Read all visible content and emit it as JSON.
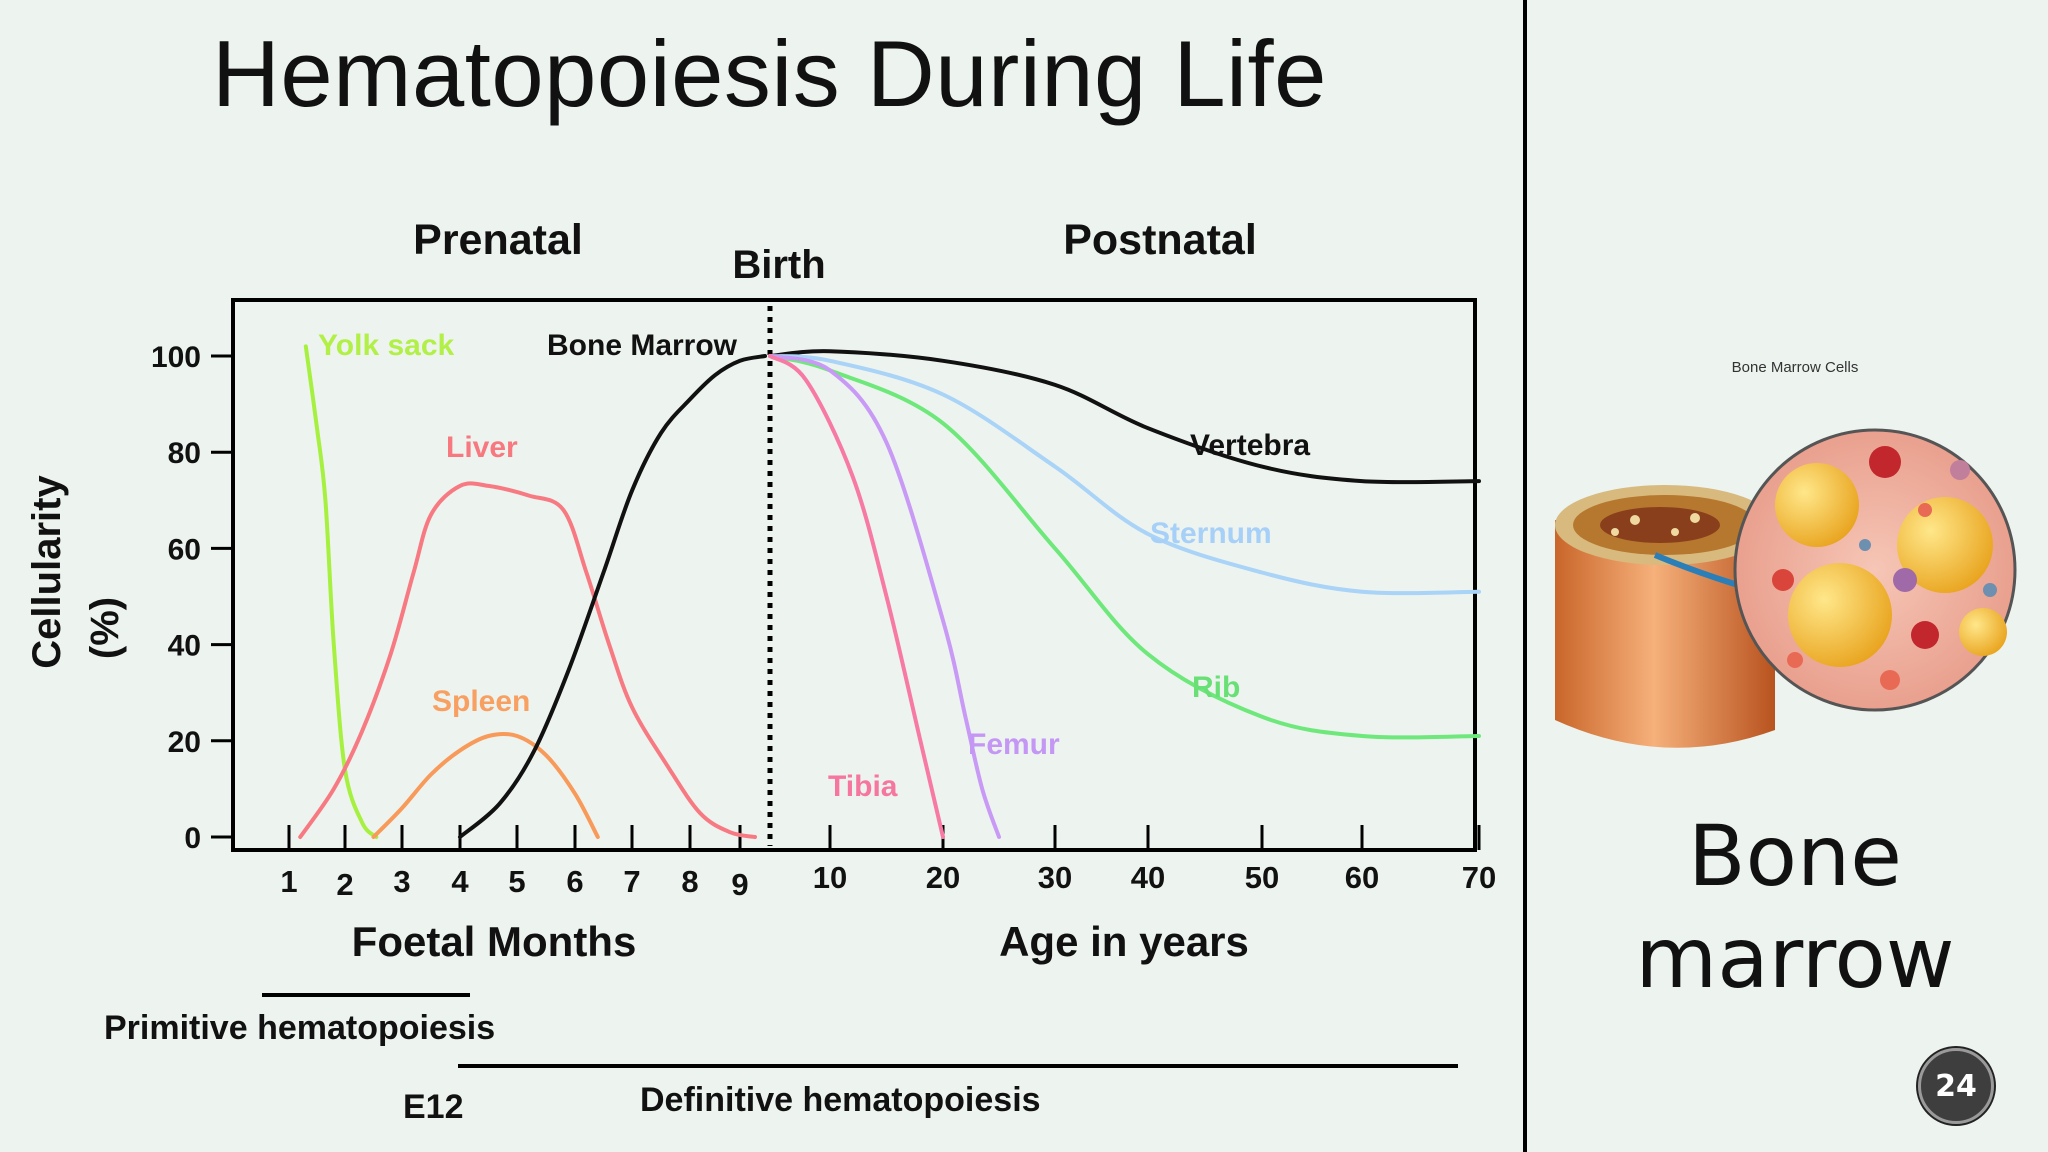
{
  "slide": {
    "title": "Hematopoiesis During Life",
    "right_title_line1": "Bone",
    "right_title_line2": "marrow",
    "page_number": "24",
    "illustration_caption": "Bone Marrow Cells"
  },
  "chart_data": {
    "type": "line",
    "title": "",
    "ylabel_line1": "Cellularity",
    "ylabel_line2": "(%)",
    "ylim": [
      0,
      100
    ],
    "yticks": [
      "0",
      "20",
      "40",
      "60",
      "80",
      "100"
    ],
    "section_labels": {
      "prenatal": "Prenatal",
      "birth": "Birth",
      "postnatal": "Postnatal"
    },
    "x_prenatal_label": "Foetal Months",
    "x_postnatal_label": "Age in years",
    "x_prenatal_ticks": [
      "1",
      "2",
      "3",
      "4",
      "5",
      "6",
      "7",
      "8",
      "9"
    ],
    "x_postnatal_ticks": [
      "10",
      "20",
      "30",
      "40",
      "50",
      "60",
      "70"
    ],
    "annotations": {
      "primitive": "Primitive hematopoiesis",
      "e12": "E12",
      "definitive": "Definitive hematopoiesis"
    },
    "series": [
      {
        "name": "Yolk sack",
        "color": "#a6f040",
        "axis": "prenatal",
        "points": [
          [
            1.3,
            102
          ],
          [
            1.5,
            85
          ],
          [
            1.65,
            70
          ],
          [
            1.8,
            40
          ],
          [
            2.0,
            14
          ],
          [
            2.3,
            3
          ],
          [
            2.55,
            0
          ]
        ]
      },
      {
        "name": "Liver",
        "color": "#f77a82",
        "axis": "prenatal",
        "points": [
          [
            1.2,
            0
          ],
          [
            1.8,
            10
          ],
          [
            2.3,
            22
          ],
          [
            2.8,
            38
          ],
          [
            3.2,
            55
          ],
          [
            3.5,
            67
          ],
          [
            4.0,
            73
          ],
          [
            4.5,
            73
          ],
          [
            5.2,
            71
          ],
          [
            5.8,
            68
          ],
          [
            6.2,
            55
          ],
          [
            6.6,
            40
          ],
          [
            7.0,
            27
          ],
          [
            7.6,
            15
          ],
          [
            8.2,
            5
          ],
          [
            8.8,
            1
          ],
          [
            9.3,
            0
          ]
        ]
      },
      {
        "name": "Spleen",
        "color": "#f79a5a",
        "axis": "prenatal",
        "points": [
          [
            2.5,
            0
          ],
          [
            3.0,
            6
          ],
          [
            3.5,
            13
          ],
          [
            4.0,
            18
          ],
          [
            4.5,
            21
          ],
          [
            5.0,
            21
          ],
          [
            5.5,
            17
          ],
          [
            6.0,
            9
          ],
          [
            6.4,
            0
          ]
        ]
      },
      {
        "name": "Bone Marrow",
        "color": "#111111",
        "axis": "prenatal",
        "points": [
          [
            4.0,
            0
          ],
          [
            4.7,
            7
          ],
          [
            5.3,
            18
          ],
          [
            5.9,
            35
          ],
          [
            6.5,
            55
          ],
          [
            7.0,
            72
          ],
          [
            7.5,
            84
          ],
          [
            8.0,
            91
          ],
          [
            8.5,
            96
          ],
          [
            9.0,
            99
          ],
          [
            9.5,
            100
          ]
        ]
      },
      {
        "name": "Vertebra",
        "color": "#111111",
        "axis": "postnatal",
        "points": [
          [
            5,
            100
          ],
          [
            10,
            101
          ],
          [
            20,
            99
          ],
          [
            30,
            94
          ],
          [
            40,
            85
          ],
          [
            50,
            77
          ],
          [
            60,
            74
          ],
          [
            70,
            74
          ]
        ]
      },
      {
        "name": "Sternum",
        "color": "#a9d3f7",
        "axis": "postnatal",
        "points": [
          [
            5,
            100
          ],
          [
            10,
            99
          ],
          [
            20,
            92
          ],
          [
            30,
            77
          ],
          [
            40,
            63
          ],
          [
            50,
            55
          ],
          [
            60,
            51
          ],
          [
            70,
            51
          ]
        ]
      },
      {
        "name": "Rib",
        "color": "#6ee87a",
        "axis": "postnatal",
        "points": [
          [
            5,
            100
          ],
          [
            10,
            97
          ],
          [
            20,
            86
          ],
          [
            30,
            60
          ],
          [
            40,
            38
          ],
          [
            50,
            25
          ],
          [
            60,
            21
          ],
          [
            70,
            21
          ]
        ]
      },
      {
        "name": "Femur",
        "color": "#c99af5",
        "axis": "postnatal",
        "points": [
          [
            5,
            100
          ],
          [
            10,
            97
          ],
          [
            15,
            82
          ],
          [
            20,
            45
          ],
          [
            22,
            25
          ],
          [
            23.5,
            10
          ],
          [
            25,
            0
          ]
        ]
      },
      {
        "name": "Tibia",
        "color": "#f77aa5",
        "axis": "postnatal",
        "points": [
          [
            5,
            100
          ],
          [
            8,
            95
          ],
          [
            12,
            75
          ],
          [
            15,
            50
          ],
          [
            18,
            20
          ],
          [
            20,
            0
          ]
        ]
      }
    ],
    "label_colors": {
      "Yolk sack": "#b2f048",
      "Liver": "#f7787f",
      "Spleen": "#f7a062",
      "Bone Marrow": "#111111",
      "Vertebra": "#111111",
      "Sternum": "#a6d0f7",
      "Rib": "#68e076",
      "Femur": "#c497f5",
      "Tibia": "#f5769f"
    }
  }
}
